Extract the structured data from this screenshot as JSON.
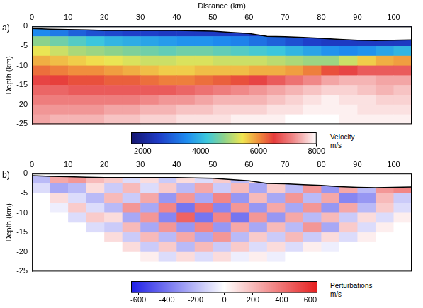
{
  "chart_data": [
    {
      "type": "heatmap",
      "panel": "a)",
      "x_label": "Distance (km)",
      "y_label": "Depth (km)",
      "xlim": [
        0,
        105
      ],
      "xticks": [
        0,
        10,
        20,
        30,
        40,
        50,
        60,
        70,
        80,
        90,
        100
      ],
      "ylim": [
        -25,
        0
      ],
      "yticks": [
        0,
        -5,
        -10,
        -15,
        -20,
        -25
      ],
      "grid": false,
      "x_edges": [
        0,
        5,
        10,
        15,
        20,
        25,
        30,
        35,
        40,
        45,
        50,
        55,
        60,
        65,
        70,
        75,
        80,
        85,
        90,
        95,
        100,
        105
      ],
      "y_edges": [
        0,
        -2.5,
        -5,
        -7.5,
        -10,
        -12.5,
        -15,
        -17.5,
        -20,
        -22.5,
        -25
      ],
      "cells": [
        [
          3500,
          3300,
          3000,
          2800,
          2700,
          2600,
          2600,
          2500,
          2500,
          2500,
          2500,
          2500,
          2400,
          2400,
          2300,
          2300,
          2300,
          2300,
          2300,
          2300,
          2300
        ],
        [
          4800,
          4600,
          4400,
          4200,
          4000,
          3900,
          3800,
          3700,
          3600,
          3600,
          3500,
          3400,
          3200,
          3000,
          2800,
          2600,
          2500,
          2500,
          2500,
          2500,
          2500
        ],
        [
          5400,
          5200,
          5000,
          4900,
          4800,
          4700,
          4600,
          4500,
          4600,
          4600,
          4500,
          4400,
          4300,
          4200,
          4000,
          3800,
          3600,
          3500,
          3600,
          3800,
          4000
        ],
        [
          5800,
          5700,
          5600,
          5500,
          5400,
          5300,
          5200,
          5200,
          5300,
          5300,
          5200,
          5200,
          5200,
          5100,
          5000,
          4900,
          4900,
          5200,
          5600,
          5800,
          5900
        ],
        [
          6200,
          6100,
          6000,
          6000,
          5900,
          5800,
          5700,
          5600,
          5600,
          5700,
          5700,
          5700,
          5800,
          5800,
          5900,
          6100,
          6400,
          6600,
          6800,
          6800,
          6800
        ],
        [
          6600,
          6500,
          6400,
          6400,
          6300,
          6300,
          6200,
          6100,
          6100,
          6200,
          6300,
          6400,
          6600,
          6800,
          7000,
          7200,
          7400,
          7500,
          7500,
          7400,
          7400
        ],
        [
          6900,
          6900,
          6800,
          6800,
          6800,
          6800,
          6800,
          6800,
          6900,
          7000,
          7100,
          7200,
          7300,
          7400,
          7500,
          7600,
          7700,
          7700,
          7600,
          7500,
          7600
        ],
        [
          7100,
          7100,
          7100,
          7100,
          7100,
          7100,
          7200,
          7300,
          7300,
          7400,
          7500,
          7500,
          7500,
          7600,
          7700,
          7800,
          7900,
          7800,
          7800,
          7700,
          7700
        ],
        [
          7300,
          7300,
          7300,
          7300,
          7400,
          7400,
          7500,
          7500,
          7600,
          7600,
          7700,
          7700,
          7700,
          7800,
          7800,
          7900,
          7900,
          7900,
          7800,
          7800,
          7800
        ],
        [
          7400,
          7500,
          7500,
          7500,
          7600,
          7600,
          7700,
          7700,
          7800,
          7800,
          7800,
          7900,
          7900,
          7900,
          8000,
          8000,
          8000,
          7900,
          7900,
          7900,
          7900
        ]
      ],
      "surface": {
        "x": [
          0,
          5,
          10,
          15,
          20,
          25,
          30,
          35,
          40,
          45,
          50,
          55,
          60,
          65,
          70,
          75,
          80,
          85,
          90,
          95,
          100,
          105
        ],
        "y": [
          -0.5,
          -0.7,
          -0.8,
          -0.9,
          -1,
          -1,
          -1,
          -1,
          -1,
          -1.1,
          -1.2,
          -1.5,
          -1.8,
          -2.5,
          -2.6,
          -2.8,
          -3,
          -3.3,
          -3.5,
          -3.6,
          -3.5,
          -3.4
        ]
      },
      "colorbar": {
        "label": [
          "Velocity",
          "m/s"
        ],
        "range": [
          1600,
          8000
        ],
        "ticks": [
          2000,
          4000,
          6000,
          8000
        ]
      }
    },
    {
      "type": "heatmap",
      "panel": "b)",
      "y_label": "Depth (km)",
      "xlim": [
        0,
        105
      ],
      "xticks": [
        0,
        10,
        20,
        30,
        40,
        50,
        60,
        70,
        80,
        90,
        100
      ],
      "ylim": [
        -25,
        0
      ],
      "yticks": [
        0,
        -5,
        -10,
        -15,
        -20,
        -25
      ],
      "grid": false,
      "x_edges": [
        0,
        5,
        10,
        15,
        20,
        25,
        30,
        35,
        40,
        45,
        50,
        55,
        60,
        65,
        70,
        75,
        80,
        85,
        90,
        95,
        100,
        105
      ],
      "y_edges": [
        0,
        -2.5,
        -5,
        -7.5,
        -10,
        -12.5,
        -15,
        -17.5,
        -20,
        -22.5,
        -25
      ],
      "cells": [
        [
          -200,
          250,
          300,
          200,
          150,
          -100,
          100,
          -150,
          100,
          -100,
          150,
          -200,
          100,
          -150,
          0,
          0,
          0,
          0,
          0,
          0,
          0
        ],
        [
          -100,
          -250,
          -200,
          100,
          -150,
          200,
          -100,
          150,
          -200,
          250,
          -150,
          200,
          -250,
          150,
          -200,
          300,
          -300,
          250,
          -200,
          300,
          350
        ],
        [
          0,
          100,
          -100,
          -200,
          200,
          -150,
          250,
          -300,
          300,
          -250,
          350,
          -300,
          200,
          -250,
          300,
          -200,
          250,
          -350,
          -300,
          200,
          -150
        ],
        [
          0,
          -50,
          150,
          -100,
          -200,
          300,
          -250,
          350,
          -400,
          400,
          -350,
          300,
          -300,
          250,
          -250,
          300,
          -300,
          250,
          -200,
          150,
          -100
        ],
        [
          0,
          0,
          -100,
          150,
          100,
          -250,
          300,
          -350,
          450,
          -400,
          350,
          -400,
          300,
          -300,
          250,
          -200,
          200,
          -150,
          100,
          -100,
          50
        ],
        [
          0,
          0,
          0,
          -100,
          -150,
          200,
          -250,
          300,
          -300,
          350,
          -300,
          250,
          -250,
          200,
          -200,
          300,
          -250,
          150,
          -100,
          50,
          0
        ],
        [
          0,
          0,
          0,
          0,
          100,
          -150,
          200,
          -200,
          250,
          -250,
          300,
          -200,
          150,
          -150,
          200,
          -150,
          100,
          -100,
          50,
          0,
          0
        ],
        [
          0,
          0,
          0,
          0,
          0,
          100,
          -150,
          150,
          -200,
          200,
          -150,
          150,
          -100,
          100,
          -100,
          50,
          -50,
          0,
          0,
          0,
          0
        ],
        [
          0,
          0,
          0,
          0,
          0,
          0,
          50,
          -100,
          100,
          -100,
          100,
          -50,
          50,
          -50,
          0,
          0,
          0,
          0,
          0,
          0,
          0
        ],
        [
          0,
          0,
          0,
          0,
          0,
          0,
          0,
          0,
          0,
          0,
          0,
          0,
          0,
          0,
          0,
          0,
          0,
          0,
          0,
          0,
          0
        ]
      ],
      "surface": {
        "x": [
          0,
          5,
          10,
          15,
          20,
          25,
          30,
          35,
          40,
          45,
          50,
          55,
          60,
          65,
          70,
          75,
          80,
          85,
          90,
          95,
          100,
          105
        ],
        "y": [
          -0.5,
          -0.7,
          -0.8,
          -0.9,
          -1,
          -1,
          -1,
          -1,
          -1,
          -1.1,
          -1.2,
          -1.5,
          -1.8,
          -2.5,
          -2.6,
          -2.8,
          -3,
          -3.3,
          -3.5,
          -3.6,
          -3.5,
          -3.4
        ]
      },
      "colorbar": {
        "label": [
          "Perturbations",
          "m/s"
        ],
        "range": [
          -650,
          650
        ],
        "ticks": [
          -600,
          -400,
          -200,
          0,
          200,
          400,
          600
        ]
      }
    }
  ]
}
